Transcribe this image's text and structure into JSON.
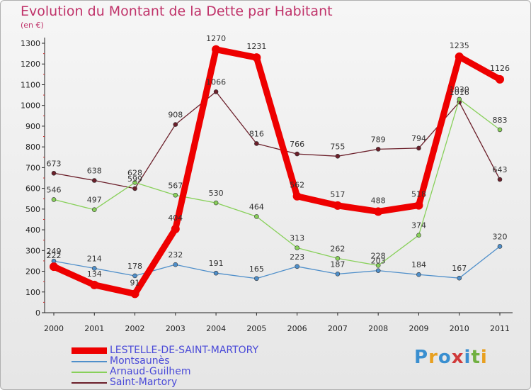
{
  "header": {
    "title": "Evolution du Montant de la Dette par Habitant",
    "subtitle": "(en €)"
  },
  "logo": {
    "text": "Proxiti",
    "letters": [
      "P",
      "r",
      "o",
      "x",
      "i",
      "t",
      "i"
    ],
    "colors": [
      "#3a8fd0",
      "#e8a020",
      "#3a8fd0",
      "#d03a3a",
      "#3a8fd0",
      "#70b040",
      "#e8a020"
    ]
  },
  "chart_data": {
    "type": "line",
    "title": "Evolution du Montant de la Dette par Habitant",
    "subtitle": "(en €)",
    "xlabel": "",
    "ylabel": "",
    "x": [
      "2000",
      "2001",
      "2002",
      "2003",
      "2004",
      "2005",
      "2006",
      "2007",
      "2008",
      "2009",
      "2010",
      "2011"
    ],
    "ylim": [
      0,
      1300
    ],
    "yticks": [
      0,
      100,
      200,
      300,
      400,
      500,
      600,
      700,
      800,
      900,
      1000,
      1100,
      1200,
      1300
    ],
    "grid": false,
    "legend_position": "bottom-left",
    "series": [
      {
        "name": "LESTELLE-DE-SAINT-MARTORY",
        "color": "#ee0000",
        "values": [
          222,
          134,
          91,
          404,
          1270,
          1231,
          562,
          517,
          488,
          518,
          1235,
          1126
        ],
        "labels": [
          "222",
          "134",
          "91",
          "404",
          "1270",
          "1231",
          "562",
          "517",
          "488",
          "518",
          "1235",
          "1126"
        ]
      },
      {
        "name": "Montsaunès",
        "color": "#4f8fca",
        "values": [
          249,
          214,
          178,
          232,
          191,
          165,
          223,
          187,
          203,
          184,
          167,
          320
        ],
        "labels": [
          "249",
          "214",
          "178",
          "232",
          "191",
          "165",
          "223",
          "187",
          "203",
          "184",
          "167",
          "320"
        ]
      },
      {
        "name": "Arnaud-Guilhem",
        "color": "#88d05a",
        "values": [
          546,
          497,
          628,
          567,
          530,
          464,
          313,
          262,
          228,
          374,
          1030,
          883
        ],
        "labels": [
          "546",
          "497",
          "628",
          "567",
          "530",
          "464",
          "313",
          "262",
          "228",
          "374",
          "1030",
          "883"
        ]
      },
      {
        "name": "Saint-Martory",
        "color": "#6b1f2a",
        "values": [
          673,
          638,
          599,
          908,
          1066,
          816,
          766,
          755,
          789,
          794,
          1016,
          643
        ],
        "labels": [
          "673",
          "638",
          "599",
          "908",
          "1066",
          "816",
          "766",
          "755",
          "789",
          "794",
          "1016",
          "643"
        ]
      }
    ]
  }
}
